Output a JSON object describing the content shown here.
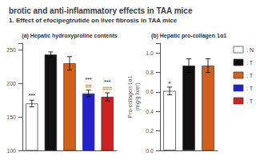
{
  "title": "brotic and anti-inflammatory effects in TAA mice",
  "subtitle": "1. Effect of efocipegtrutide on liver fibrosis in TAA mice",
  "legend": "right",
  "chart_data": [
    {
      "type": "bar",
      "title": "(a) Hepatic hydroxyproline contents",
      "categories": [
        ": N",
        ": T",
        ": T",
        ": T",
        ": T"
      ],
      "values": [
        170,
        243,
        230,
        185,
        180
      ],
      "errors": [
        5,
        4,
        10,
        5,
        6
      ],
      "colors": [
        "#ffffff",
        "#111111",
        "#d2601a",
        "#2222cc",
        "#cc2222"
      ],
      "annotations": [
        [
          {
            "text": "***"
          }
        ],
        [],
        [],
        [
          {
            "text": "##",
            "color": "#cc6600"
          },
          {
            "text": "***"
          }
        ],
        [
          {
            "text": "###",
            "color": "#cc6600"
          },
          {
            "text": "***"
          }
        ]
      ],
      "ylim": [
        100,
        260
      ],
      "yticks": [
        100,
        150,
        200,
        250
      ],
      "tick_labels": "y",
      "grid": false
    },
    {
      "type": "bar",
      "title": "(b) Hepatic pro-collagen 1α1",
      "ylabel": "Pro-collagen 1α1\n(mg/g liver)",
      "categories": [
        ": N",
        ": T",
        ": T"
      ],
      "values": [
        0.61,
        0.87,
        0.87
      ],
      "errors": [
        0.04,
        0.07,
        0.07
      ],
      "colors": [
        "#ffffff",
        "#111111",
        "#d2601a"
      ],
      "annotations": [
        [
          {
            "text": "+"
          }
        ],
        [],
        []
      ],
      "ylim": [
        0.0,
        1.1
      ],
      "yticks": [
        {
          "value": 0.0,
          "label": "0.0"
        },
        0.2,
        0.4,
        0.6,
        0.8,
        {
          "value": 1.0,
          "label": "1.0"
        }
      ],
      "tick_labels": "y",
      "grid": false
    }
  ]
}
